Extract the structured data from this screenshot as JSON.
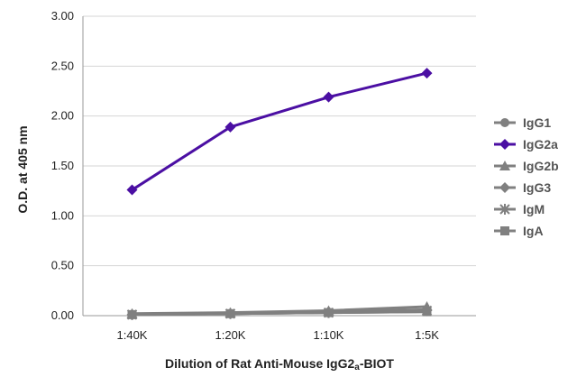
{
  "chart_data": {
    "type": "line",
    "categories": [
      "1:40K",
      "1:20K",
      "1:10K",
      "1:5K"
    ],
    "xlabel": "Dilution of Rat Anti-Mouse IgG2a-BIOT",
    "ylabel": "O.D. at 405 nm",
    "ylim": [
      0,
      3
    ],
    "yticks": [
      "0.00",
      "0.50",
      "1.00",
      "1.50",
      "2.00",
      "2.50",
      "3.00"
    ],
    "grid": true,
    "legend_position": "right",
    "series": [
      {
        "name": "IgG1",
        "values": [
          0.01,
          0.02,
          0.03,
          0.04
        ],
        "color": "#808080",
        "marker": "circle"
      },
      {
        "name": "IgG2a",
        "values": [
          1.26,
          1.89,
          2.19,
          2.43
        ],
        "color": "#4b0fa3",
        "marker": "diamond"
      },
      {
        "name": "IgG2b",
        "values": [
          0.02,
          0.03,
          0.05,
          0.09
        ],
        "color": "#808080",
        "marker": "triangle"
      },
      {
        "name": "IgG3",
        "values": [
          0.01,
          0.02,
          0.04,
          0.06
        ],
        "color": "#808080",
        "marker": "diamond"
      },
      {
        "name": "IgM",
        "values": [
          0.01,
          0.02,
          0.03,
          0.05
        ],
        "color": "#808080",
        "marker": "star"
      },
      {
        "name": "IgA",
        "values": [
          0.01,
          0.02,
          0.03,
          0.04
        ],
        "color": "#808080",
        "marker": "square"
      }
    ]
  }
}
